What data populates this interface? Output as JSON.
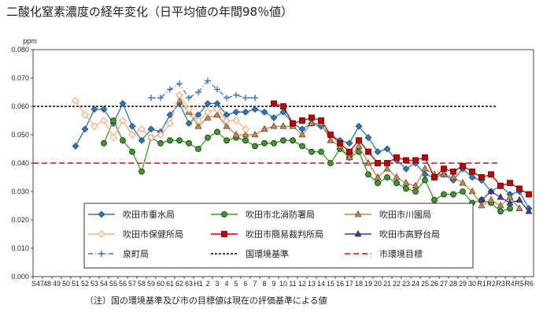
{
  "chart_title": "二酸化窒素濃度の経年変化（日平均値の年間98％値）",
  "footnote": "（注）国の環境基準及び市の目標値は現在の評価基準による値",
  "colors": {
    "suitaisui": "#2e75b6",
    "kitashobo": "#3a9d23",
    "kawazono": "#c8854a",
    "hoken": "#f4b183",
    "kani": "#c00000",
    "takanodai": "#3b3b98",
    "izumicho": "#4472c4",
    "national": "#000000",
    "city": "#ff0000"
  },
  "chart_data": {
    "type": "line",
    "title": "二酸化窒素濃度の経年変化（日平均値の年間98％値）",
    "ylabel": "ppm",
    "ylim": [
      0,
      0.08
    ],
    "yticks": [
      "0.000",
      "0.010",
      "0.020",
      "0.030",
      "0.040",
      "0.050",
      "0.060",
      "0.070",
      "0.080"
    ],
    "grid": false,
    "legend_position": "inside-bottom",
    "categories": [
      "S47",
      "48",
      "49",
      "50",
      "51",
      "52",
      "53",
      "54",
      "55",
      "56",
      "57",
      "58",
      "59",
      "60",
      "61",
      "62",
      "63",
      "H1",
      "2",
      "3",
      "4",
      "5",
      "6",
      "7",
      "8",
      "9",
      "10",
      "11",
      "12",
      "13",
      "14",
      "15",
      "16",
      "17",
      "18",
      "19",
      "20",
      "21",
      "22",
      "23",
      "24",
      "25",
      "26",
      "27",
      "28",
      "29",
      "30",
      "R1",
      "R2",
      "R3",
      "R4",
      "R5",
      "R6"
    ],
    "series": [
      {
        "name": "吹田市垂水局",
        "color_key": "suitaisui",
        "marker": "diamond",
        "values": [
          null,
          null,
          null,
          null,
          0.046,
          0.052,
          0.059,
          0.059,
          0.054,
          0.061,
          0.053,
          0.048,
          0.052,
          0.051,
          0.057,
          0.061,
          0.054,
          0.057,
          0.061,
          0.061,
          0.057,
          0.058,
          0.058,
          0.059,
          0.058,
          0.056,
          0.058,
          0.054,
          0.052,
          0.054,
          0.053,
          0.05,
          0.048,
          0.047,
          0.053,
          0.049,
          0.044,
          0.045,
          0.041,
          0.038,
          0.04,
          0.036,
          0.035,
          0.036,
          0.034,
          0.038,
          0.035,
          0.034,
          0.03,
          0.032,
          0.029,
          0.03,
          0.024
        ]
      },
      {
        "name": "吹田市北消防署局",
        "color_key": "kitashobo",
        "marker": "circle",
        "values": [
          null,
          null,
          null,
          null,
          null,
          null,
          null,
          0.047,
          0.055,
          0.048,
          0.044,
          0.037,
          0.049,
          0.047,
          0.048,
          0.048,
          0.047,
          0.045,
          0.049,
          0.051,
          0.048,
          0.049,
          0.048,
          0.046,
          0.047,
          0.047,
          0.048,
          0.048,
          0.046,
          0.044,
          0.044,
          0.04,
          0.045,
          0.042,
          0.044,
          0.036,
          0.033,
          0.035,
          0.033,
          0.031,
          0.03,
          0.034,
          0.027,
          0.029,
          0.029,
          0.03,
          0.026,
          0.027,
          0.026,
          0.023,
          0.024,
          null,
          null
        ]
      },
      {
        "name": "吹田市川園局",
        "color_key": "kawazono",
        "marker": "triangle",
        "values": [
          null,
          null,
          null,
          null,
          null,
          null,
          null,
          null,
          null,
          null,
          null,
          null,
          null,
          null,
          null,
          0.062,
          0.058,
          0.053,
          0.056,
          0.057,
          0.053,
          0.05,
          0.05,
          0.05,
          0.052,
          0.053,
          0.053,
          0.053,
          0.05,
          0.054,
          0.054,
          0.048,
          0.046,
          0.042,
          0.046,
          0.04,
          0.035,
          0.038,
          0.035,
          0.033,
          0.032,
          0.038,
          0.036,
          0.036,
          0.035,
          0.033,
          0.03,
          0.025,
          0.027,
          0.025,
          0.028,
          0.024,
          null
        ]
      },
      {
        "name": "吹田市保健所局",
        "color_key": "hoken",
        "marker": "diamond-open",
        "values": [
          null,
          null,
          null,
          null,
          0.062,
          0.057,
          0.053,
          0.055,
          0.049,
          0.055,
          0.05,
          0.052,
          0.049,
          0.05,
          0.054,
          0.064,
          0.059,
          0.055,
          0.058,
          0.059,
          0.055,
          0.055,
          0.052,
          null,
          null,
          null,
          null,
          null,
          null,
          null,
          null,
          null,
          null,
          null,
          null,
          null,
          null,
          null,
          null,
          null,
          null,
          null,
          null,
          null,
          null,
          null,
          null,
          null,
          null,
          null,
          null,
          null,
          null
        ]
      },
      {
        "name": "吹田市簡易裁判所局",
        "color_key": "kani",
        "marker": "square",
        "values": [
          null,
          null,
          null,
          null,
          null,
          null,
          null,
          null,
          null,
          null,
          null,
          null,
          null,
          null,
          null,
          null,
          null,
          null,
          null,
          null,
          null,
          null,
          null,
          null,
          null,
          0.061,
          0.06,
          0.054,
          0.055,
          0.056,
          0.055,
          0.05,
          0.047,
          0.044,
          0.048,
          0.044,
          0.04,
          0.04,
          0.042,
          0.041,
          0.041,
          0.042,
          0.035,
          0.038,
          0.037,
          0.039,
          0.037,
          0.035,
          0.036,
          0.032,
          0.033,
          0.031,
          0.029
        ]
      },
      {
        "name": "吹田市高野台局",
        "color_key": "takanodai",
        "marker": "triangle",
        "values": [
          null,
          null,
          null,
          null,
          null,
          null,
          null,
          null,
          null,
          null,
          null,
          null,
          null,
          null,
          null,
          null,
          null,
          null,
          null,
          null,
          null,
          null,
          null,
          null,
          null,
          null,
          null,
          null,
          null,
          null,
          null,
          null,
          null,
          null,
          null,
          null,
          null,
          null,
          null,
          null,
          null,
          null,
          null,
          null,
          null,
          null,
          null,
          0.027,
          0.03,
          0.028,
          0.026,
          0.027,
          0.023
        ]
      },
      {
        "name": "泉町局",
        "color_key": "izumicho",
        "marker": "plus",
        "values": [
          null,
          null,
          null,
          null,
          null,
          null,
          null,
          null,
          null,
          null,
          null,
          null,
          0.063,
          0.063,
          0.066,
          0.068,
          0.063,
          0.065,
          0.069,
          0.066,
          0.063,
          0.064,
          0.063,
          0.063,
          null,
          null,
          null,
          null,
          null,
          null,
          null,
          null,
          null,
          null,
          null,
          null,
          null,
          null,
          null,
          null,
          null,
          null,
          null,
          null,
          null,
          null,
          null,
          null,
          null,
          null,
          null,
          null,
          null
        ]
      }
    ],
    "reference_lines": [
      {
        "name": "国環境基準",
        "value": 0.06,
        "color_key": "national",
        "dash": "short"
      },
      {
        "name": "市環境目標",
        "value": 0.04,
        "color_key": "city",
        "dash": "long"
      }
    ]
  }
}
